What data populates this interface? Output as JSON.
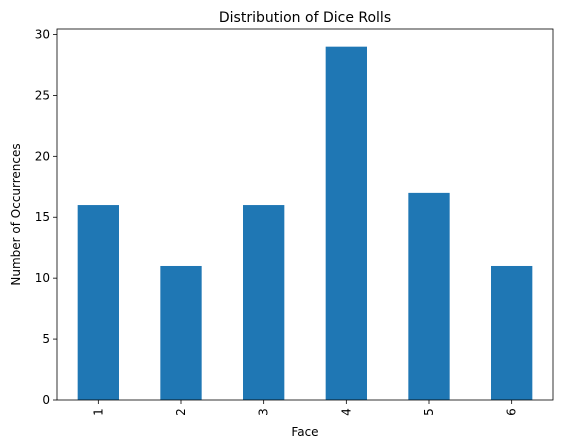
{
  "chart_data": {
    "type": "bar",
    "title": "Distribution of Dice Rolls",
    "xlabel": "Face",
    "ylabel": "Number of Occurrences",
    "categories": [
      "1",
      "2",
      "3",
      "4",
      "5",
      "6"
    ],
    "values": [
      16,
      11,
      16,
      29,
      17,
      11
    ],
    "ylim": [
      0,
      30.45
    ],
    "yticks": [
      0,
      5,
      10,
      15,
      20,
      25,
      30
    ],
    "grid": false,
    "bar_color": "#1f77b4"
  }
}
